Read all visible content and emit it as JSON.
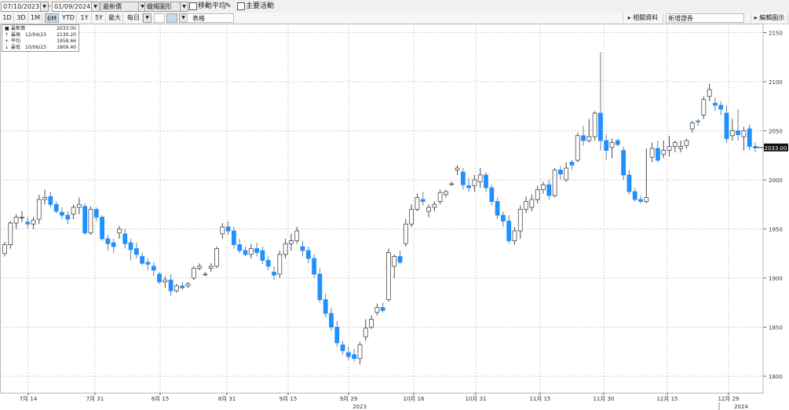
{
  "toolbar": {
    "start_date": "07/10/2023",
    "end_date": "01/09/2024",
    "price_type": "最新價",
    "chart_type": "蠟燭圖形",
    "moving_average_label": "移動平均",
    "events_label": "主要活動",
    "pencil_icon": "pencil-icon"
  },
  "range_buttons": [
    "1D",
    "3D",
    "1M",
    "6M",
    "YTD",
    "1Y",
    "5Y",
    "最大",
    "每日"
  ],
  "active_range": "6M",
  "toolbar2": {
    "table_label": "表格",
    "related_data_label": "相關資料",
    "compare_label": "新增證券",
    "edit_label": "編輯圖示"
  },
  "legend": {
    "rows": [
      {
        "symbol": "■",
        "name": "最新價",
        "date": "",
        "value": "2033.00"
      },
      {
        "symbol": "↑",
        "name": "最高",
        "date": "12/04/23",
        "value": "2130.20"
      },
      {
        "symbol": "+",
        "name": "平均",
        "date": "",
        "value": "1958.66"
      },
      {
        "symbol": "↓",
        "name": "最低",
        "date": "10/06/23",
        "value": "1809.40"
      }
    ]
  },
  "colors": {
    "up": "#ffffff",
    "up_border": "#4a4a4a",
    "down": "#1e90ff",
    "grid": "#cfcfcf",
    "last_price_tag": "#111111"
  },
  "chart_data": {
    "type": "candlestick",
    "last_price": "2033.00",
    "ylim": [
      1790,
      2160
    ],
    "yticks": [
      1800,
      1850,
      1900,
      1950,
      2000,
      2050,
      2100,
      2150
    ],
    "xtick_labels": [
      "7月 14",
      "7月 31",
      "8月 15",
      "8月 31",
      "9月 15",
      "9月 29",
      "10月 16",
      "10月 31",
      "11月 15",
      "11月 30",
      "12月 15",
      "12月 29"
    ],
    "year_labels": [
      "2023",
      "2024"
    ],
    "candles": [
      [
        1925,
        1937,
        1922,
        1934
      ],
      [
        1934,
        1958,
        1930,
        1956
      ],
      [
        1956,
        1965,
        1950,
        1962
      ],
      [
        1962,
        1968,
        1957,
        1962
      ],
      [
        1957,
        1962,
        1951,
        1955
      ],
      [
        1955,
        1962,
        1950,
        1959
      ],
      [
        1960,
        1985,
        1955,
        1980
      ],
      [
        1980,
        1990,
        1975,
        1982
      ],
      [
        1983,
        1988,
        1972,
        1975
      ],
      [
        1975,
        1978,
        1966,
        1968
      ],
      [
        1967,
        1972,
        1960,
        1964
      ],
      [
        1964,
        1968,
        1955,
        1960
      ],
      [
        1965,
        1975,
        1960,
        1972
      ],
      [
        1972,
        1982,
        1965,
        1975
      ],
      [
        1973,
        1976,
        1944,
        1946
      ],
      [
        1946,
        1973,
        1944,
        1970
      ],
      [
        1970,
        1972,
        1958,
        1962
      ],
      [
        1962,
        1964,
        1938,
        1940
      ],
      [
        1940,
        1944,
        1928,
        1935
      ],
      [
        1936,
        1940,
        1925,
        1932
      ],
      [
        1946,
        1953,
        1940,
        1950
      ],
      [
        1945,
        1950,
        1930,
        1935
      ],
      [
        1936,
        1940,
        1918,
        1929
      ],
      [
        1930,
        1936,
        1920,
        1924
      ],
      [
        1922,
        1926,
        1913,
        1915
      ],
      [
        1916,
        1920,
        1908,
        1914
      ],
      [
        1912,
        1916,
        1902,
        1908
      ],
      [
        1904,
        1906,
        1894,
        1896
      ],
      [
        1896,
        1902,
        1890,
        1898
      ],
      [
        1898,
        1904,
        1882,
        1887
      ],
      [
        1887,
        1894,
        1885,
        1892
      ],
      [
        1892,
        1896,
        1888,
        1890
      ],
      [
        1892,
        1896,
        1890,
        1894
      ],
      [
        1900,
        1912,
        1898,
        1910
      ],
      [
        1910,
        1915,
        1908,
        1912
      ],
      [
        1904,
        1906,
        1902,
        1904
      ],
      [
        1910,
        1915,
        1906,
        1912
      ],
      [
        1912,
        1932,
        1910,
        1930
      ],
      [
        1945,
        1956,
        1940,
        1952
      ],
      [
        1952,
        1958,
        1944,
        1948
      ],
      [
        1948,
        1952,
        1930,
        1934
      ],
      [
        1934,
        1940,
        1925,
        1928
      ],
      [
        1928,
        1932,
        1922,
        1924
      ],
      [
        1924,
        1935,
        1920,
        1930
      ],
      [
        1930,
        1936,
        1922,
        1926
      ],
      [
        1928,
        1932,
        1914,
        1918
      ],
      [
        1918,
        1922,
        1908,
        1912
      ],
      [
        1906,
        1912,
        1898,
        1903
      ],
      [
        1904,
        1928,
        1900,
        1924
      ],
      [
        1924,
        1940,
        1920,
        1935
      ],
      [
        1935,
        1945,
        1928,
        1938
      ],
      [
        1938,
        1952,
        1935,
        1948
      ],
      [
        1932,
        1938,
        1922,
        1928
      ],
      [
        1928,
        1932,
        1915,
        1920
      ],
      [
        1920,
        1924,
        1900,
        1904
      ],
      [
        1904,
        1910,
        1875,
        1878
      ],
      [
        1878,
        1884,
        1860,
        1864
      ],
      [
        1864,
        1870,
        1846,
        1850
      ],
      [
        1850,
        1856,
        1830,
        1834
      ],
      [
        1832,
        1836,
        1822,
        1826
      ],
      [
        1824,
        1830,
        1816,
        1820
      ],
      [
        1822,
        1828,
        1815,
        1818
      ],
      [
        1818,
        1835,
        1812,
        1832
      ],
      [
        1840,
        1858,
        1836,
        1849
      ],
      [
        1850,
        1862,
        1848,
        1858
      ],
      [
        1865,
        1874,
        1862,
        1870
      ],
      [
        1870,
        1875,
        1865,
        1867
      ],
      [
        1878,
        1930,
        1876,
        1926
      ],
      [
        1912,
        1924,
        1900,
        1922
      ],
      [
        1922,
        1928,
        1914,
        1916
      ],
      [
        1935,
        1960,
        1932,
        1955
      ],
      [
        1955,
        1975,
        1952,
        1970
      ],
      [
        1970,
        1986,
        1968,
        1982
      ],
      [
        1980,
        1988,
        1974,
        1978
      ],
      [
        1968,
        1975,
        1962,
        1972
      ],
      [
        1972,
        1978,
        1968,
        1975
      ],
      [
        1978,
        1990,
        1975,
        1987
      ],
      [
        1985,
        1990,
        1982,
        1988
      ],
      [
        1996,
        1998,
        1994,
        1996
      ],
      [
        2010,
        2015,
        2005,
        2012
      ],
      [
        2008,
        2012,
        1990,
        1995
      ],
      [
        1994,
        2002,
        1988,
        1992
      ],
      [
        1994,
        2005,
        1988,
        2000
      ],
      [
        1998,
        2012,
        1992,
        2005
      ],
      [
        2005,
        2008,
        1988,
        1992
      ],
      [
        1992,
        1995,
        1974,
        1978
      ],
      [
        1978,
        1982,
        1960,
        1964
      ],
      [
        1964,
        1968,
        1952,
        1958
      ],
      [
        1958,
        1964,
        1935,
        1938
      ],
      [
        1938,
        1952,
        1934,
        1948
      ],
      [
        1948,
        1974,
        1940,
        1970
      ],
      [
        1970,
        1983,
        1966,
        1978
      ],
      [
        1972,
        1985,
        1968,
        1980
      ],
      [
        1980,
        1994,
        1976,
        1990
      ],
      [
        1990,
        1998,
        1986,
        1995
      ],
      [
        1995,
        2000,
        1980,
        1984
      ],
      [
        1984,
        2012,
        1982,
        2010
      ],
      [
        2010,
        2014,
        2000,
        2006
      ],
      [
        2000,
        2018,
        1998,
        2012
      ],
      [
        2018,
        2020,
        2010,
        2015
      ],
      [
        2020,
        2048,
        2018,
        2045
      ],
      [
        2045,
        2055,
        2035,
        2040
      ],
      [
        2040,
        2062,
        2038,
        2044
      ],
      [
        2044,
        2070,
        2040,
        2068
      ],
      [
        2068,
        2130,
        2030,
        2040
      ],
      [
        2040,
        2046,
        2020,
        2030
      ],
      [
        2033,
        2042,
        2022,
        2038
      ],
      [
        2040,
        2042,
        2034,
        2036
      ],
      [
        2030,
        2034,
        2000,
        2005
      ],
      [
        2005,
        2010,
        1985,
        1988
      ],
      [
        1988,
        1992,
        1978,
        1980
      ],
      [
        1980,
        1984,
        1976,
        1978
      ],
      [
        1978,
        2032,
        1976,
        1982
      ],
      [
        2023,
        2038,
        2018,
        2032
      ],
      [
        2032,
        2040,
        2018,
        2020
      ],
      [
        2026,
        2040,
        2022,
        2030
      ],
      [
        2030,
        2045,
        2024,
        2034
      ],
      [
        2034,
        2040,
        2028,
        2038
      ],
      [
        2032,
        2040,
        2028,
        2034
      ],
      [
        2035,
        2042,
        2032,
        2040
      ],
      [
        2052,
        2060,
        2048,
        2058
      ],
      [
        2060,
        2062,
        2055,
        2059
      ],
      [
        2066,
        2085,
        2062,
        2082
      ],
      [
        2085,
        2098,
        2080,
        2092
      ],
      [
        2078,
        2084,
        2070,
        2076
      ],
      [
        2076,
        2080,
        2066,
        2072
      ],
      [
        2068,
        2076,
        2038,
        2042
      ],
      [
        2045,
        2062,
        2040,
        2050
      ],
      [
        2050,
        2072,
        2040,
        2046
      ],
      [
        2044,
        2054,
        2030,
        2050
      ],
      [
        2052,
        2056,
        2030,
        2034
      ],
      [
        2034,
        2038,
        2028,
        2033
      ]
    ]
  }
}
